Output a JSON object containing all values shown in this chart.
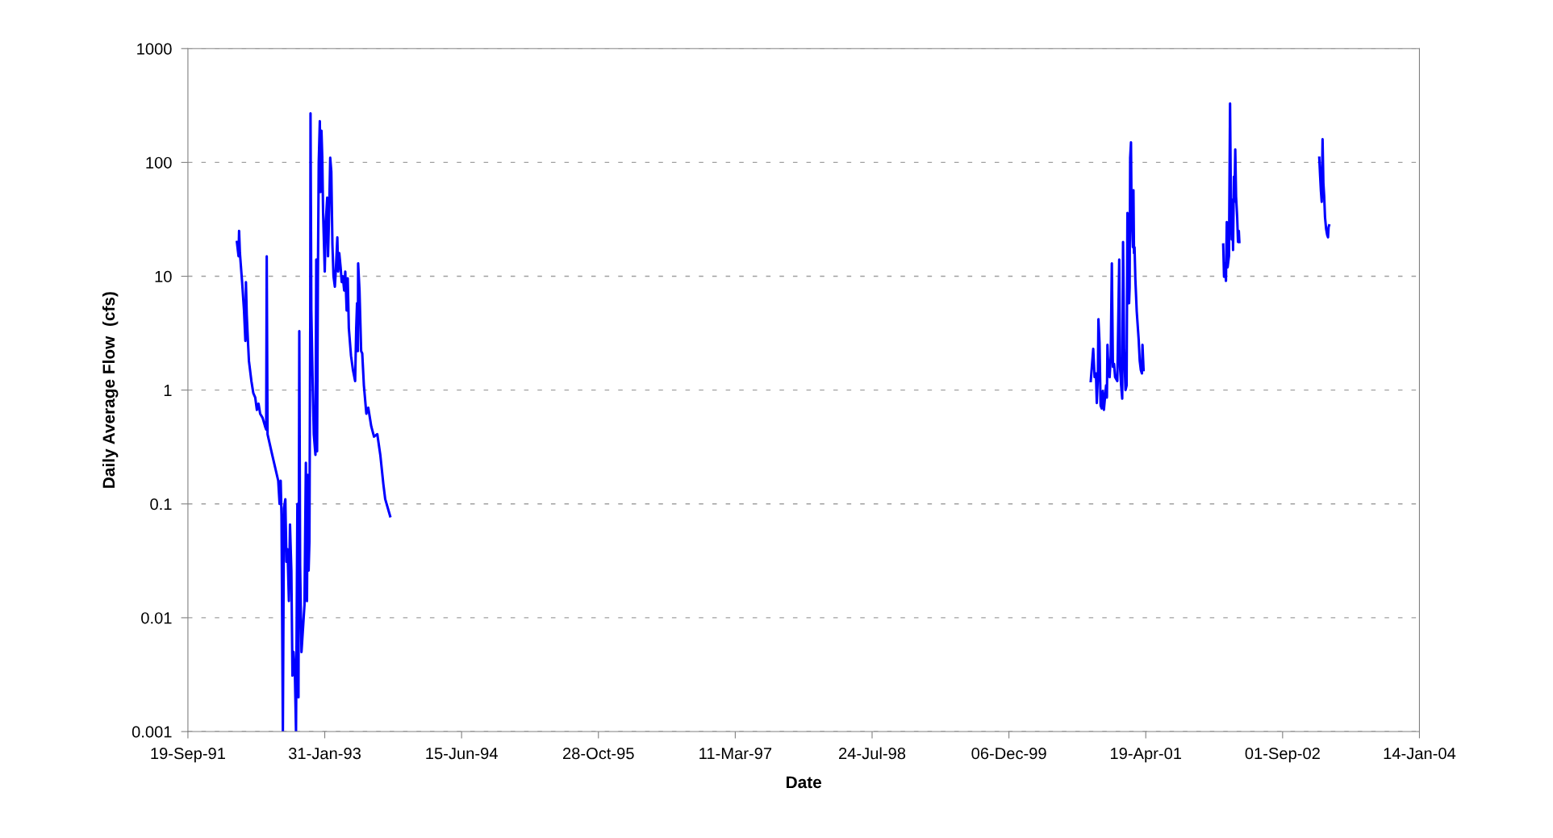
{
  "chart_data": {
    "type": "line",
    "xlabel": "Date",
    "ylabel": "Daily Average Flow  (cfs)",
    "log": "y",
    "grid": "y",
    "marker": "none",
    "line_style": "solid",
    "xlim": [
      "1991-09-19",
      "2004-01-14"
    ],
    "xticks": [
      {
        "value": "1991-09-19",
        "label": "19-Sep-91"
      },
      {
        "value": "1993-01-31",
        "label": "31-Jan-93"
      },
      {
        "value": "1994-06-15",
        "label": "15-Jun-94"
      },
      {
        "value": "1995-10-28",
        "label": "28-Oct-95"
      },
      {
        "value": "1997-03-11",
        "label": "11-Mar-97"
      },
      {
        "value": "1998-07-24",
        "label": "24-Jul-98"
      },
      {
        "value": "1999-12-06",
        "label": "06-Dec-99"
      },
      {
        "value": "2001-04-19",
        "label": "19-Apr-01"
      },
      {
        "value": "2002-09-01",
        "label": "01-Sep-02"
      },
      {
        "value": "2004-01-14",
        "label": "14-Jan-04"
      }
    ],
    "ylim": [
      0.001,
      1000
    ],
    "yticks": [
      0.001,
      0.01,
      0.1,
      1,
      10,
      100,
      1000
    ],
    "series": [
      {
        "color": "#0000ff",
        "x": [
          "1992-03-16",
          "1992-03-22",
          "1992-03-24",
          "1992-03-27",
          "1992-04-04",
          "1992-04-11",
          "1992-04-16",
          "1992-04-18",
          "1992-04-21",
          "1992-04-26",
          "1992-04-29",
          "1992-05-08",
          "1992-05-15",
          "1992-05-22",
          "1992-05-28",
          "1992-06-03",
          "1992-06-09",
          "1992-06-18",
          "1992-06-27",
          "1992-07-01",
          "1992-07-03",
          "1992-07-06",
          "1992-07-23",
          "1992-08-14",
          "1992-08-19",
          "1992-08-23",
          "1992-08-26",
          "1992-08-31",
          "1992-09-04",
          "1992-09-09",
          "1992-09-13",
          "1992-09-17",
          "1992-09-22",
          "1992-09-26",
          "1992-10-01",
          "1992-10-05",
          "1992-10-09",
          "1992-10-14",
          "1992-10-18",
          "1992-10-23",
          "1992-10-27",
          "1992-10-30",
          "1992-11-02",
          "1992-11-07",
          "1992-11-18",
          "1992-11-23",
          "1992-11-27",
          "1992-11-30",
          "1992-12-03",
          "1992-12-06",
          "1992-12-09",
          "1992-12-10",
          "1992-12-13",
          "1992-12-18",
          "1992-12-22",
          "1992-12-28",
          "1992-12-31",
          "1993-01-03",
          "1993-01-06",
          "1993-01-09",
          "1993-01-13",
          "1993-01-16",
          "1993-01-19",
          "1993-01-22",
          "1993-01-25",
          "1993-01-31",
          "1993-02-04",
          "1993-02-09",
          "1993-02-12",
          "1993-02-16",
          "1993-02-20",
          "1993-02-24",
          "1993-02-28",
          "1993-03-04",
          "1993-03-09",
          "1993-03-13",
          "1993-03-18",
          "1993-03-21",
          "1993-03-25",
          "1993-03-30",
          "1993-04-03",
          "1993-04-07",
          "1993-04-12",
          "1993-04-16",
          "1993-04-21",
          "1993-04-25",
          "1993-04-29",
          "1993-05-07",
          "1993-05-14",
          "1993-05-22",
          "1993-05-26",
          "1993-05-29",
          "1993-06-01",
          "1993-06-02",
          "1993-06-07",
          "1993-06-13",
          "1993-06-17",
          "1993-06-23",
          "1993-07-02",
          "1993-07-09",
          "1993-07-20",
          "1993-07-30",
          "1993-08-11",
          "1993-08-22",
          "1993-09-02",
          "1993-09-09",
          "1993-09-27"
        ],
        "values": [
          20,
          15,
          25,
          16,
          8.9,
          5.0,
          2.7,
          8.9,
          4.6,
          2.5,
          1.8,
          1.2,
          0.94,
          0.86,
          0.67,
          0.76,
          0.62,
          0.57,
          0.48,
          0.45,
          15,
          0.41,
          0.27,
          0.16,
          0.1,
          0.16,
          0.078,
          0.001,
          0.092,
          0.11,
          0.031,
          0.04,
          0.014,
          0.066,
          0.026,
          0.0031,
          0.005,
          0.0031,
          0.001,
          0.1,
          0.002,
          3.3,
          0.029,
          0.005,
          0.013,
          0.23,
          0.014,
          0.18,
          0.026,
          0.047,
          4.2,
          270,
          5.0,
          1.1,
          0.41,
          0.27,
          14,
          0.29,
          9.6,
          100,
          230,
          55,
          190,
          110,
          36,
          11,
          31,
          49,
          15,
          36,
          110,
          83,
          19,
          10,
          8.1,
          12,
          22,
          11,
          16,
          12,
          8.9,
          10,
          7.5,
          11,
          5.0,
          9.6,
          3.5,
          2.0,
          1.5,
          1.2,
          3.5,
          5.8,
          2.2,
          13,
          7.5,
          2.2,
          2.1,
          1.1,
          0.62,
          0.7,
          0.48,
          0.39,
          0.41,
          0.27,
          0.15,
          0.11,
          0.078
        ]
      },
      {
        "color": "#0000ff",
        "x": [
          "2000-09-30",
          "2000-10-09",
          "2000-10-14",
          "2000-10-19",
          "2000-10-22",
          "2000-10-26",
          "2000-10-28",
          "2000-11-01",
          "2000-11-05",
          "2000-11-09",
          "2000-11-13",
          "2000-11-17",
          "2000-11-25",
          "2000-11-28",
          "2000-11-30",
          "2000-12-04",
          "2000-12-08",
          "2000-12-12",
          "2000-12-16",
          "2000-12-20",
          "2000-12-24",
          "2000-12-28",
          "2001-01-05",
          "2001-01-12",
          "2001-01-15",
          "2001-01-19",
          "2001-01-23",
          "2001-01-26",
          "2001-01-30",
          "2001-02-04",
          "2001-02-08",
          "2001-02-11",
          "2001-02-15",
          "2001-02-17",
          "2001-02-19",
          "2001-02-21",
          "2001-02-24",
          "2001-02-26",
          "2001-03-03",
          "2001-03-05",
          "2001-03-07",
          "2001-03-09",
          "2001-03-12",
          "2001-03-17",
          "2001-03-24",
          "2001-03-28",
          "2001-04-01",
          "2001-04-05",
          "2001-04-07",
          "2001-04-11"
        ],
        "values": [
          1.2,
          2.3,
          1.3,
          1.4,
          0.77,
          1.3,
          4.2,
          2.6,
          0.73,
          0.69,
          0.98,
          0.67,
          1.1,
          0.86,
          2.5,
          1.4,
          1.3,
          2.0,
          13,
          1.6,
          1.7,
          1.3,
          1.2,
          14,
          1.6,
          1.1,
          0.84,
          20,
          2.3,
          1.0,
          1.1,
          36,
          33,
          5.8,
          8.0,
          110,
          150,
          39,
          18,
          57,
          16,
          18,
          9.4,
          4.9,
          2.8,
          1.8,
          1.5,
          1.4,
          2.5,
          1.5
        ]
      },
      {
        "color": "#0000ff",
        "x": [
          "2002-01-27",
          "2002-01-30",
          "2002-02-03",
          "2002-02-06",
          "2002-02-09",
          "2002-02-12",
          "2002-02-17",
          "2002-02-21",
          "2002-02-24",
          "2002-02-27",
          "2002-03-01",
          "2002-03-04",
          "2002-03-07",
          "2002-03-09",
          "2002-03-12",
          "2002-03-15",
          "2002-03-19",
          "2002-03-22",
          "2002-03-25",
          "2002-03-27"
        ],
        "values": [
          19,
          9.9,
          13,
          9.1,
          30,
          12,
          15,
          330,
          45,
          21,
          47,
          17,
          75,
          45,
          130,
          50,
          33,
          20,
          25,
          20
        ]
      },
      {
        "color": "#0000ff",
        "x": [
          "2003-01-13",
          "2003-01-16",
          "2003-01-19",
          "2003-01-22",
          "2003-01-25",
          "2003-01-28",
          "2003-01-31",
          "2003-02-03",
          "2003-02-07",
          "2003-02-11",
          "2003-02-14",
          "2003-02-16",
          "2003-02-18"
        ],
        "values": [
          110,
          77,
          56,
          45,
          160,
          66,
          50,
          33,
          26,
          23,
          22,
          27,
          28
        ]
      }
    ]
  }
}
